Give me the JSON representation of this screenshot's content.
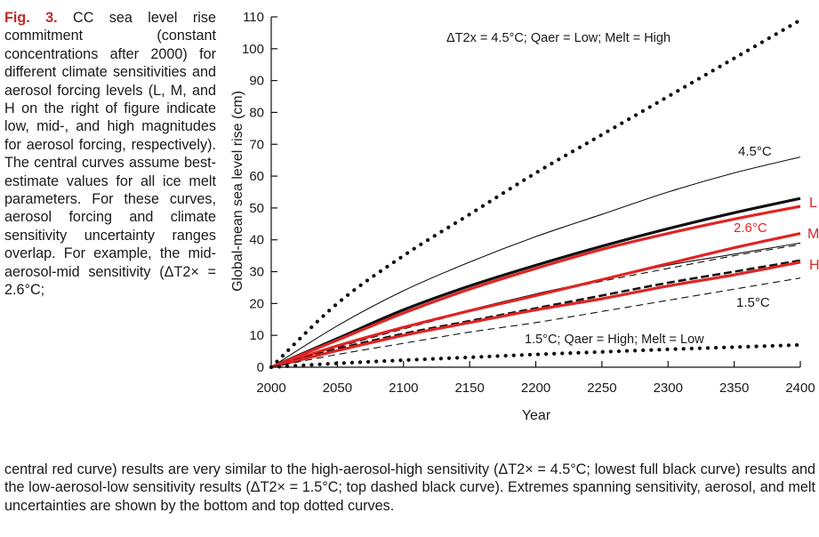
{
  "caption": {
    "fig_label": "Fig. 3.",
    "top_text": "CC sea level rise commitment (constant concentrations after 2000) for different climate sensitivities and aerosol forcing levels (L, M, and H on the right of figure indicate low, mid-, and high magnitudes for aerosol forcing, respectively). The central curves assume best-estimate values for all ice melt parameters. For these curves, aerosol forcing and climate sensitivity uncertainty ranges overlap. For example, the mid-aerosol-mid sensitivity (ΔT2× = 2.6°C;",
    "bottom_text": "central red curve) results are very similar to the high-aerosol-high sensitivity (ΔT2× = 4.5°C; lowest full black curve) results and the low-aerosol-low sensitivity results (ΔT2× = 1.5°C; top dashed black curve). Extremes spanning sensitivity, aerosol, and melt uncertainties are shown by the bottom and top dotted curves."
  },
  "chart_data": {
    "type": "line",
    "xlabel": "Year",
    "ylabel": "Global-mean sea level rise (cm)",
    "xlim": [
      2000,
      2400
    ],
    "ylim": [
      0,
      110
    ],
    "xticks": [
      2000,
      2050,
      2100,
      2150,
      2200,
      2250,
      2300,
      2350,
      2400
    ],
    "yticks": [
      0,
      10,
      20,
      30,
      40,
      50,
      60,
      70,
      80,
      90,
      100,
      110
    ],
    "colors": {
      "black": "#111111",
      "red": "#e02424"
    },
    "series": [
      {
        "style": "dotted",
        "color": "black",
        "x": [
          2000,
          2050,
          2100,
          2150,
          2200,
          2250,
          2300,
          2350,
          2400
        ],
        "values": [
          0,
          20,
          35,
          48,
          61,
          73,
          85,
          97,
          109
        ]
      },
      {
        "style": "thin-solid",
        "color": "black",
        "x": [
          2000,
          2050,
          2100,
          2150,
          2200,
          2250,
          2300,
          2350,
          2400
        ],
        "values": [
          0,
          13,
          24,
          33,
          41,
          48,
          55,
          61,
          66
        ]
      },
      {
        "style": "thick-solid",
        "color": "black",
        "x": [
          2000,
          2050,
          2100,
          2150,
          2200,
          2250,
          2300,
          2350,
          2400
        ],
        "values": [
          0,
          9,
          18,
          25.5,
          32,
          38,
          43.5,
          48.5,
          53
        ]
      },
      {
        "style": "thick-solid",
        "color": "red",
        "x": [
          2000,
          2050,
          2100,
          2150,
          2200,
          2250,
          2300,
          2350,
          2400
        ],
        "values": [
          0,
          8.5,
          17,
          24.5,
          31,
          37,
          42,
          46.5,
          50.5
        ]
      },
      {
        "style": "thin-solid",
        "color": "black",
        "x": [
          2000,
          2050,
          2100,
          2150,
          2200,
          2250,
          2300,
          2350,
          2400
        ],
        "values": [
          0,
          6.5,
          12.5,
          18,
          23,
          27.5,
          32,
          35.5,
          39
        ]
      },
      {
        "style": "dashed",
        "color": "black",
        "x": [
          2000,
          2050,
          2100,
          2150,
          2200,
          2250,
          2300,
          2350,
          2400
        ],
        "values": [
          0,
          6.2,
          12,
          17.5,
          22.5,
          27,
          31,
          35,
          38.5
        ]
      },
      {
        "style": "thick-solid",
        "color": "red",
        "x": [
          2000,
          2050,
          2100,
          2150,
          2200,
          2250,
          2300,
          2350,
          2400
        ],
        "values": [
          0,
          6.7,
          12.5,
          17.7,
          22.5,
          27.5,
          32.5,
          37.5,
          42
        ]
      },
      {
        "style": "thick-dashed",
        "color": "black",
        "x": [
          2000,
          2050,
          2100,
          2150,
          2200,
          2250,
          2300,
          2350,
          2400
        ],
        "values": [
          0,
          5.7,
          10.5,
          14.5,
          18.5,
          22.5,
          26.5,
          30,
          33.5
        ]
      },
      {
        "style": "thick-solid",
        "color": "red",
        "x": [
          2000,
          2050,
          2100,
          2150,
          2200,
          2250,
          2300,
          2350,
          2400
        ],
        "values": [
          0,
          5.2,
          10,
          14,
          18,
          21.5,
          25.5,
          29,
          33
        ]
      },
      {
        "style": "dashed",
        "color": "black",
        "x": [
          2000,
          2050,
          2100,
          2150,
          2200,
          2250,
          2300,
          2350,
          2400
        ],
        "values": [
          0,
          4,
          7.5,
          11,
          14,
          17.5,
          21,
          24.5,
          28
        ]
      },
      {
        "style": "dotted",
        "color": "black",
        "x": [
          2000,
          2050,
          2100,
          2150,
          2200,
          2250,
          2300,
          2350,
          2400
        ],
        "values": [
          0,
          1.2,
          2.2,
          3.1,
          4,
          4.8,
          5.6,
          6.3,
          7
        ]
      }
    ],
    "annotations": {
      "top_label": "ΔT2x = 4.5°C; Qaer = Low; Melt = High",
      "bottom_label": "1.5°C; Qaer = High; Melt = Low",
      "label_45": "4.5°C",
      "label_26": "2.6°C",
      "label_15": "1.5°C",
      "L": "L",
      "M": "M",
      "H": "H"
    }
  }
}
